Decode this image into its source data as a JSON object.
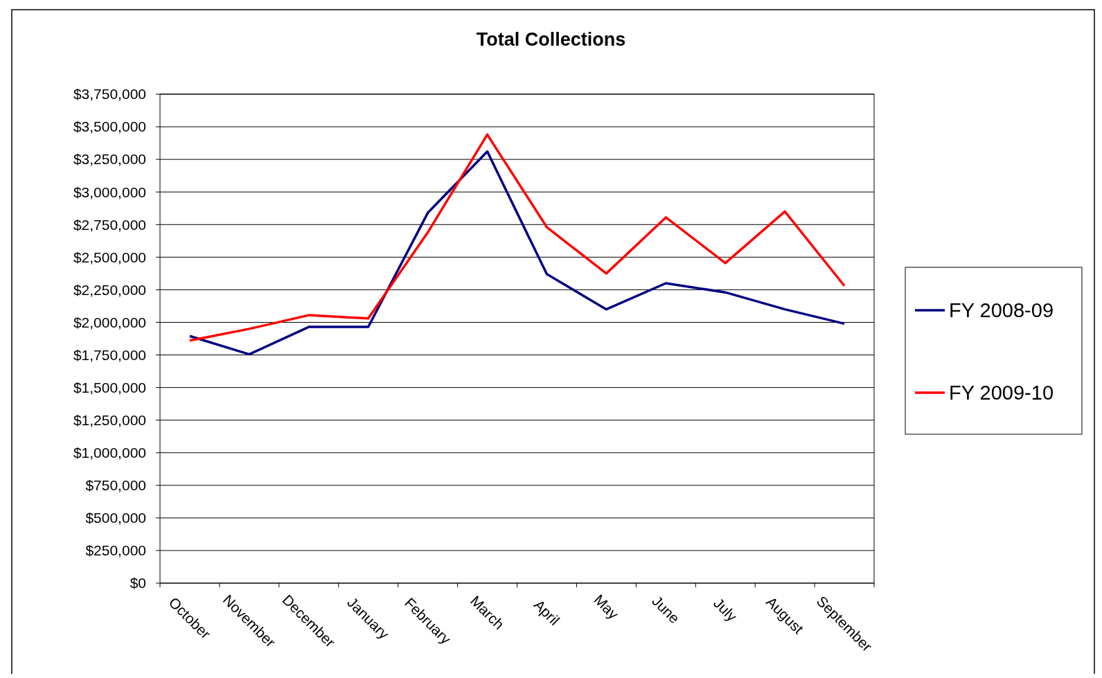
{
  "chart_data": {
    "type": "line",
    "title": "Total Collections",
    "categories": [
      "October",
      "November",
      "December",
      "January",
      "February",
      "March",
      "April",
      "May",
      "June",
      "July",
      "August",
      "September"
    ],
    "series": [
      {
        "name": "FY 2008-09",
        "color": "#000080",
        "values": [
          1895000,
          1755000,
          1965000,
          1965000,
          2840000,
          3310000,
          2370000,
          2100000,
          2300000,
          2230000,
          2100000,
          1990000
        ]
      },
      {
        "name": "FY 2009-10",
        "color": "#ff0000",
        "values": [
          1860000,
          1950000,
          2055000,
          2030000,
          2690000,
          3440000,
          2730000,
          2375000,
          2805000,
          2455000,
          2850000,
          2280000
        ]
      }
    ],
    "ylim": [
      0,
      3750000
    ],
    "yticks": [
      {
        "value": 0,
        "label": "$0"
      },
      {
        "value": 250000,
        "label": "$250,000"
      },
      {
        "value": 500000,
        "label": "$500,000"
      },
      {
        "value": 750000,
        "label": "$750,000"
      },
      {
        "value": 1000000,
        "label": "$1,000,000"
      },
      {
        "value": 1250000,
        "label": "$1,250,000"
      },
      {
        "value": 1500000,
        "label": "$1,500,000"
      },
      {
        "value": 1750000,
        "label": "$1,750,000"
      },
      {
        "value": 2000000,
        "label": "$2,000,000"
      },
      {
        "value": 2250000,
        "label": "$2,250,000"
      },
      {
        "value": 2500000,
        "label": "$2,500,000"
      },
      {
        "value": 2750000,
        "label": "$2,750,000"
      },
      {
        "value": 3000000,
        "label": "$3,000,000"
      },
      {
        "value": 3250000,
        "label": "$3,250,000"
      },
      {
        "value": 3500000,
        "label": "$3,500,000"
      },
      {
        "value": 3750000,
        "label": "$3,750,000"
      }
    ],
    "grid": "y",
    "legend": "right",
    "marker": "none",
    "line_style": "solid"
  }
}
